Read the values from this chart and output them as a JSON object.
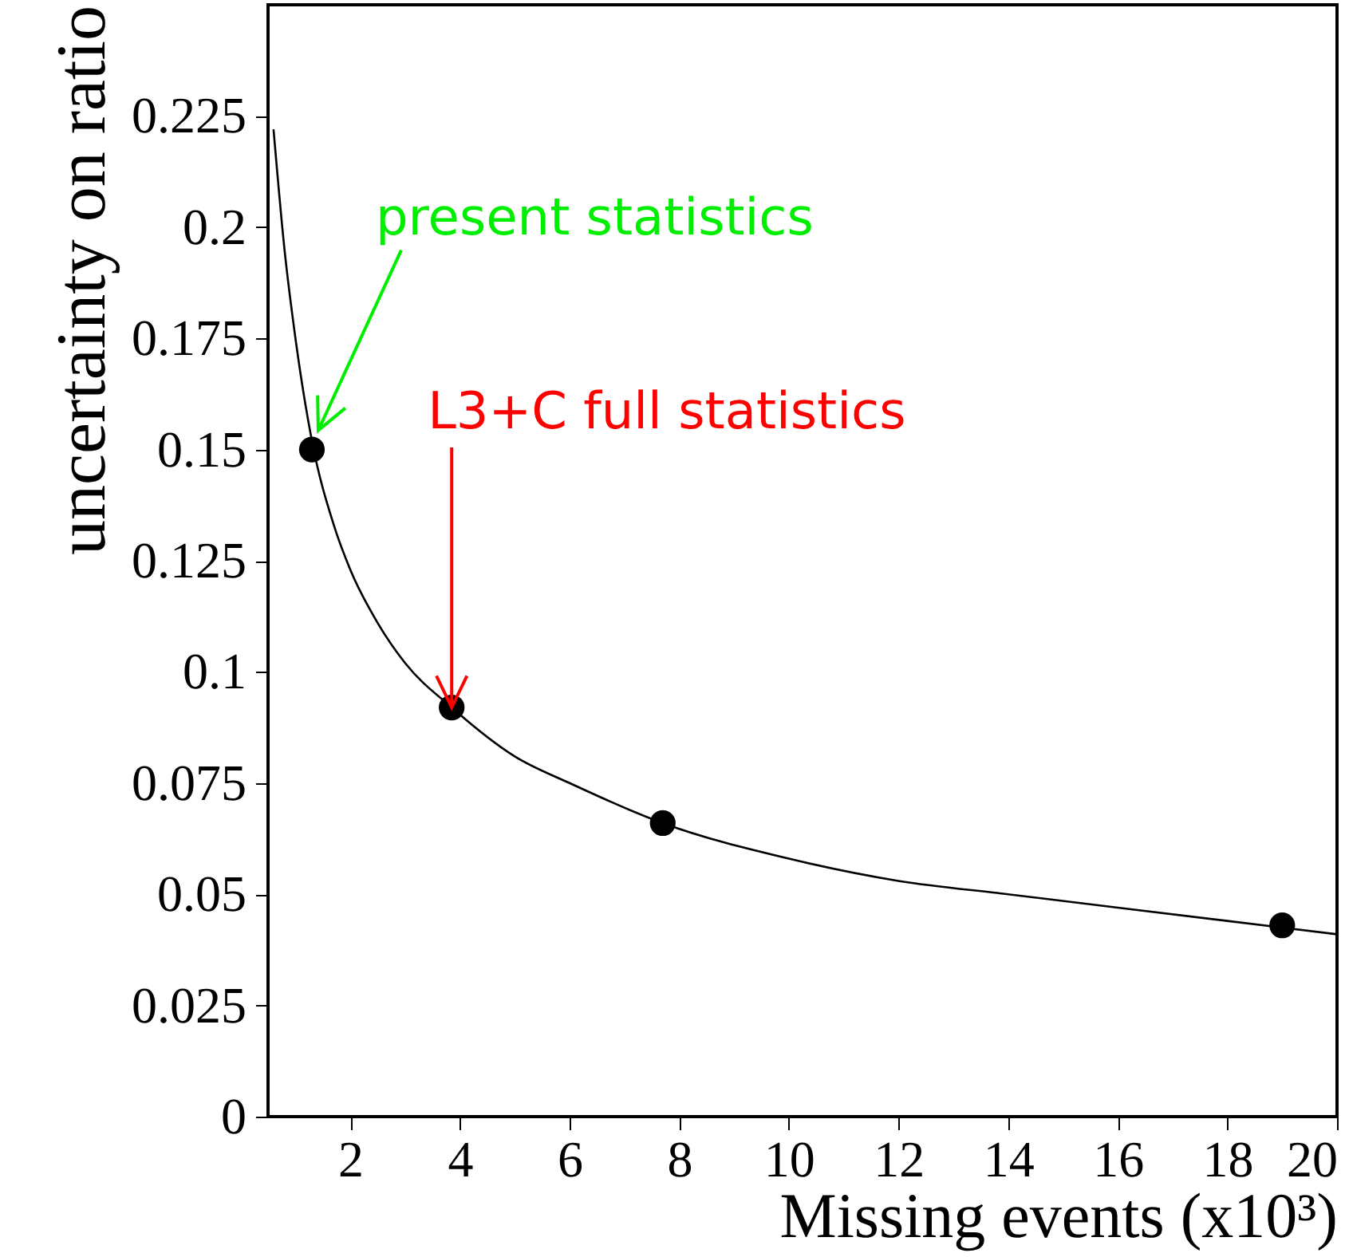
{
  "chart_data": {
    "type": "scatter",
    "xlabel": "Missing events (x10³)",
    "ylabel": "uncertainty on ratio",
    "xlim": [
      0.5,
      20
    ],
    "ylim": [
      0,
      0.25
    ],
    "xticks": [
      2,
      4,
      6,
      8,
      10,
      12,
      14,
      16,
      18,
      20
    ],
    "yticks": [
      0,
      0.025,
      0.05,
      0.075,
      0.1,
      0.125,
      0.15,
      0.175,
      0.2,
      0.225
    ],
    "grid": false,
    "series": [
      {
        "color": "#000000",
        "marker": "circle",
        "x": [
          1.3,
          3.85,
          7.7,
          19
        ],
        "values": [
          0.15,
          0.092,
          0.066,
          0.043
        ]
      },
      {
        "type": "line",
        "color": "#000000",
        "marker": "none",
        "x": [
          0.6,
          0.8,
          1,
          1.3,
          1.7,
          2,
          2.5,
          3,
          3.85,
          5,
          6,
          7.7,
          10,
          12,
          14,
          16,
          18,
          20
        ],
        "values": [
          0.222,
          0.195,
          0.175,
          0.152,
          0.133,
          0.123,
          0.111,
          0.102,
          0.092,
          0.081,
          0.075,
          0.066,
          0.058,
          0.053,
          0.05,
          0.047,
          0.044,
          0.041
        ]
      }
    ],
    "annotations": [
      "present statistics",
      {
        "text": "L3+C full statistics",
        "x": 3.85,
        "y": 0.092
      }
    ]
  }
}
